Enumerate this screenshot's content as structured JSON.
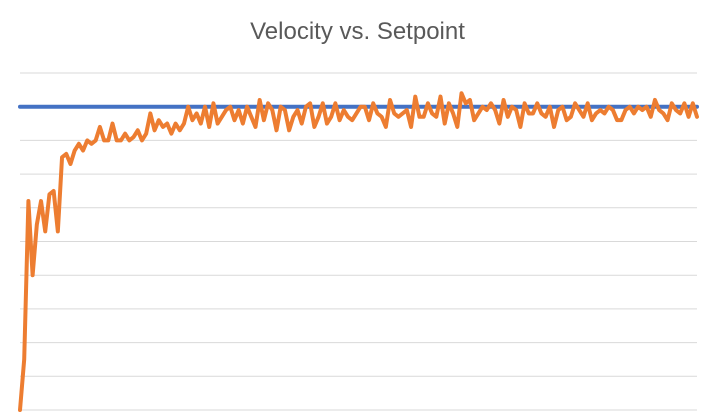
{
  "chart_data": {
    "type": "line",
    "title": "Velocity vs. Setpoint",
    "xlabel": "",
    "ylabel": "",
    "ylim": [
      0,
      100
    ],
    "grid": true,
    "legend": "none",
    "x": [
      1,
      2,
      3,
      4,
      5,
      6,
      7,
      8,
      9,
      10,
      11,
      12,
      13,
      14,
      15,
      16,
      17,
      18,
      19,
      20,
      21,
      22,
      23,
      24,
      25,
      26,
      27,
      28,
      29,
      30,
      31,
      32,
      33,
      34,
      35,
      36,
      37,
      38,
      39,
      40,
      41,
      42,
      43,
      44,
      45,
      46,
      47,
      48,
      49,
      50,
      51,
      52,
      53,
      54,
      55,
      56,
      57,
      58,
      59,
      60,
      61,
      62,
      63,
      64,
      65,
      66,
      67,
      68,
      69,
      70,
      71,
      72,
      73,
      74,
      75,
      76,
      77,
      78,
      79,
      80,
      81,
      82,
      83,
      84,
      85,
      86,
      87,
      88,
      89,
      90,
      91,
      92,
      93,
      94,
      95,
      96,
      97,
      98,
      99,
      100,
      101,
      102,
      103,
      104,
      105,
      106,
      107,
      108,
      109,
      110,
      111,
      112,
      113,
      114,
      115,
      116,
      117,
      118,
      119,
      120,
      121,
      122,
      123,
      124,
      125,
      126,
      127,
      128,
      129,
      130,
      131,
      132,
      133,
      134,
      135,
      136,
      137,
      138,
      139,
      140,
      141,
      142,
      143,
      144,
      145,
      146,
      147,
      148,
      149,
      150,
      151,
      152,
      153,
      154,
      155,
      156,
      157,
      158,
      159,
      160,
      161,
      162
    ],
    "series": [
      {
        "values": [
          90,
          90,
          90,
          90,
          90,
          90,
          90,
          90,
          90,
          90,
          90,
          90,
          90,
          90,
          90,
          90,
          90,
          90,
          90,
          90,
          90,
          90,
          90,
          90,
          90,
          90,
          90,
          90,
          90,
          90,
          90,
          90,
          90,
          90,
          90,
          90,
          90,
          90,
          90,
          90,
          90,
          90,
          90,
          90,
          90,
          90,
          90,
          90,
          90,
          90,
          90,
          90,
          90,
          90,
          90,
          90,
          90,
          90,
          90,
          90,
          90,
          90,
          90,
          90,
          90,
          90,
          90,
          90,
          90,
          90,
          90,
          90,
          90,
          90,
          90,
          90,
          90,
          90,
          90,
          90,
          90,
          90,
          90,
          90,
          90,
          90,
          90,
          90,
          90,
          90,
          90,
          90,
          90,
          90,
          90,
          90,
          90,
          90,
          90,
          90,
          90,
          90,
          90,
          90,
          90,
          90,
          90,
          90,
          90,
          90,
          90,
          90,
          90,
          90,
          90,
          90,
          90,
          90,
          90,
          90,
          90,
          90,
          90,
          90,
          90,
          90,
          90,
          90,
          90,
          90,
          90,
          90,
          90,
          90,
          90,
          90,
          90,
          90,
          90,
          90,
          90,
          90,
          90,
          90,
          90,
          90,
          90,
          90,
          90,
          90,
          90,
          90,
          90,
          90,
          90,
          90,
          90,
          90,
          90,
          90,
          90,
          90
        ],
        "color": "#4472c4"
      },
      {
        "values": [
          0,
          15,
          62,
          40,
          55,
          62,
          53,
          64,
          65,
          53,
          75,
          76,
          73,
          77,
          79,
          77,
          80,
          79,
          80,
          84,
          80,
          80,
          85,
          80,
          80,
          82,
          80,
          81,
          83,
          80,
          82,
          88,
          83,
          86,
          84,
          85,
          82,
          85,
          83,
          85,
          90,
          86,
          88,
          85,
          90,
          84,
          91,
          85,
          87,
          89,
          90,
          86,
          89,
          85,
          90,
          87,
          84,
          92,
          86,
          91,
          89,
          83,
          90,
          89,
          83,
          87,
          89,
          85,
          90,
          91,
          84,
          87,
          91,
          85,
          87,
          91,
          86,
          89,
          87,
          86,
          88,
          90,
          90,
          86,
          91,
          88,
          87,
          84,
          92,
          88,
          87,
          88,
          89,
          84,
          93,
          87,
          87,
          91,
          88,
          87,
          93,
          85,
          91,
          88,
          84,
          94,
          91,
          92,
          86,
          88,
          90,
          89,
          91,
          89,
          85,
          92,
          87,
          90,
          89,
          84,
          91,
          88,
          88,
          91,
          88,
          87,
          90,
          84,
          89,
          90,
          86,
          87,
          91,
          89,
          87,
          91,
          86,
          88,
          89,
          88,
          90,
          89,
          86,
          86,
          89,
          90,
          88,
          90,
          89,
          90,
          87,
          92,
          89,
          88,
          86,
          91,
          89,
          88,
          91,
          87,
          91,
          87
        ],
        "color": "#ed7d31"
      }
    ]
  }
}
